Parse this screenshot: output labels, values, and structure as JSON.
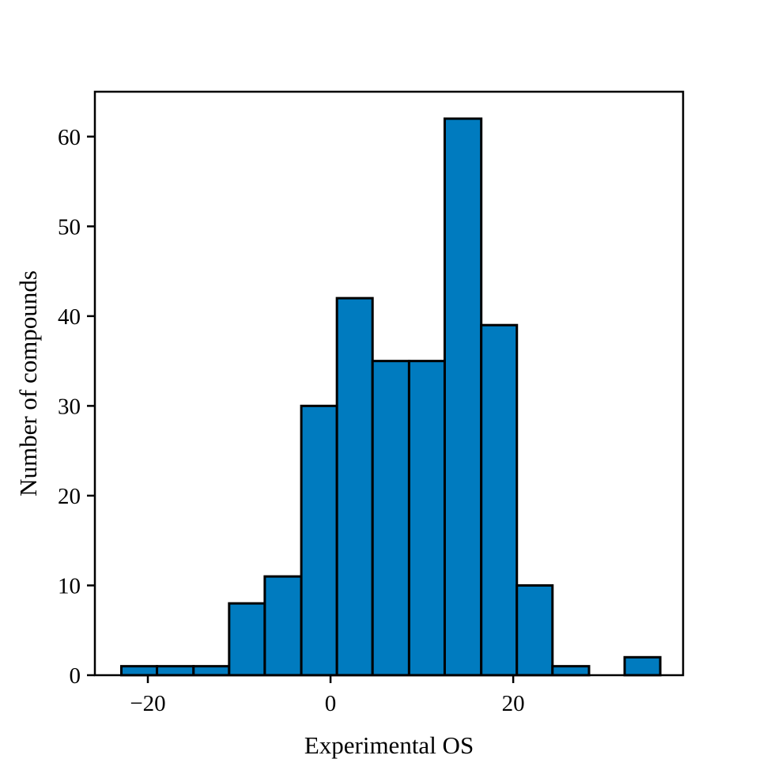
{
  "chart_data": {
    "type": "bar",
    "title": "",
    "xlabel": "Experimental OS",
    "ylabel": "Number of compounds",
    "bar_color": "#007bbf",
    "edge_color": "#000000",
    "xlim": [
      -25.8,
      38.6
    ],
    "ylim": [
      0,
      65
    ],
    "x_ticks": [
      -20,
      0,
      20
    ],
    "x_tick_labels": [
      "−20",
      "0",
      "20"
    ],
    "y_ticks": [
      0,
      10,
      20,
      30,
      40,
      50,
      60
    ],
    "y_tick_labels": [
      "0",
      "10",
      "20",
      "30",
      "40",
      "50",
      "60"
    ],
    "grid": false,
    "bins": [
      {
        "x0": -22.9,
        "x1": -19.0,
        "count": 1
      },
      {
        "x0": -19.0,
        "x1": -15.0,
        "count": 1
      },
      {
        "x0": -15.0,
        "x1": -11.1,
        "count": 1
      },
      {
        "x0": -11.1,
        "x1": -7.2,
        "count": 8
      },
      {
        "x0": -7.2,
        "x1": -3.2,
        "count": 11
      },
      {
        "x0": -3.2,
        "x1": 0.7,
        "count": 30
      },
      {
        "x0": 0.7,
        "x1": 4.6,
        "count": 42
      },
      {
        "x0": 4.6,
        "x1": 8.6,
        "count": 35
      },
      {
        "x0": 8.6,
        "x1": 12.5,
        "count": 35
      },
      {
        "x0": 12.5,
        "x1": 16.5,
        "count": 62
      },
      {
        "x0": 16.5,
        "x1": 20.4,
        "count": 39
      },
      {
        "x0": 20.4,
        "x1": 24.3,
        "count": 10
      },
      {
        "x0": 24.3,
        "x1": 28.3,
        "count": 1
      },
      {
        "x0": 28.3,
        "x1": 32.2,
        "count": 0
      },
      {
        "x0": 32.2,
        "x1": 36.1,
        "count": 2
      }
    ]
  }
}
